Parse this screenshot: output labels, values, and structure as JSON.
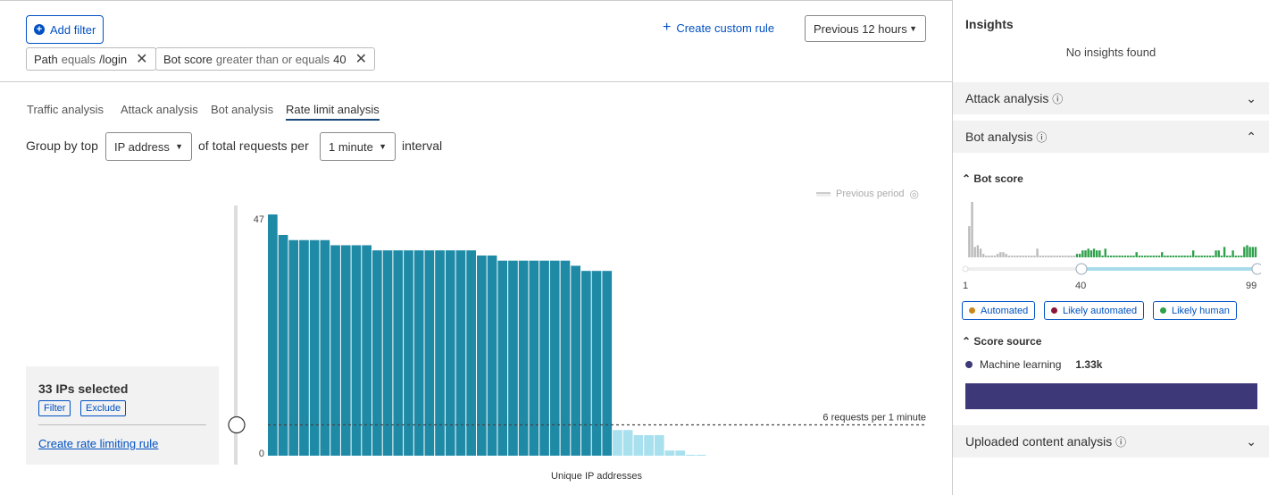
{
  "filters": {
    "add_filter": "Add filter",
    "create_custom_rule": "Create custom rule",
    "time_range": "Previous 12 hours",
    "chips": [
      {
        "field": "Path",
        "op": "equals",
        "value": "/login"
      },
      {
        "field": "Bot score",
        "op": "greater than or equals",
        "value": "40"
      }
    ]
  },
  "tabs": [
    {
      "label": "Traffic analysis"
    },
    {
      "label": "Attack analysis"
    },
    {
      "label": "Bot analysis"
    },
    {
      "label": "Rate limit analysis",
      "active": true
    }
  ],
  "groupby": {
    "prefix": "Group by top",
    "field": "IP address",
    "middle": "of total requests per",
    "interval": "1 minute",
    "suffix": "interval"
  },
  "selection": {
    "title": "33 IPs selected",
    "filter": "Filter",
    "exclude": "Exclude",
    "create_rule": "Create rate limiting rule"
  },
  "chart_data": {
    "type": "bar",
    "xlabel": "Unique IP addresses",
    "ylabel": "",
    "ylim": [
      0,
      47
    ],
    "y_ticks": [
      "0",
      "47"
    ],
    "legend": "Previous period",
    "threshold": 6,
    "threshold_label": "6 requests per 1 minute",
    "values": [
      47,
      43,
      42,
      42,
      42,
      42,
      41,
      41,
      41,
      41,
      40,
      40,
      40,
      40,
      40,
      40,
      40,
      40,
      40,
      40,
      39,
      39,
      38,
      38,
      38,
      38,
      38,
      38,
      38,
      37,
      36,
      36,
      36,
      5,
      5,
      4,
      4,
      4,
      1,
      1,
      0,
      0
    ],
    "selected_count": 33,
    "colors": {
      "selected": "#1f8aa6",
      "unselected": "#a8e0ee"
    }
  },
  "insights": {
    "title": "Insights",
    "empty": "No insights found",
    "sections": {
      "attack": "Attack analysis",
      "bot": "Bot analysis",
      "uploaded": "Uploaded content analysis"
    },
    "bot_score": {
      "title": "Bot score",
      "min": "1",
      "threshold": "40",
      "max": "99",
      "histogram": [
        0,
        18,
        32,
        6,
        7,
        5,
        2,
        1,
        1,
        1,
        1,
        2,
        3,
        3,
        2,
        1,
        1,
        1,
        1,
        1,
        1,
        1,
        1,
        1,
        1,
        5,
        1,
        1,
        1,
        1,
        1,
        1,
        1,
        1,
        1,
        1,
        1,
        1,
        1,
        2,
        2,
        4,
        4,
        5,
        4,
        5,
        4,
        4,
        1,
        5,
        1,
        1,
        1,
        1,
        1,
        1,
        1,
        1,
        1,
        1,
        3,
        1,
        1,
        1,
        1,
        1,
        1,
        1,
        1,
        3,
        1,
        1,
        1,
        1,
        1,
        1,
        1,
        1,
        1,
        1,
        4,
        1,
        1,
        1,
        1,
        1,
        1,
        1,
        4,
        4,
        1,
        6,
        1,
        1,
        4,
        1,
        1,
        1,
        6,
        7,
        6,
        6,
        6
      ],
      "legend": [
        {
          "label": "Automated",
          "color": "#c8891a"
        },
        {
          "label": "Likely automated",
          "color": "#8a1538"
        },
        {
          "label": "Likely human",
          "color": "#2ea04a"
        }
      ]
    },
    "score_source": {
      "title": "Score source",
      "label": "Machine learning",
      "value": "1.33k",
      "color": "#3d3878"
    }
  }
}
